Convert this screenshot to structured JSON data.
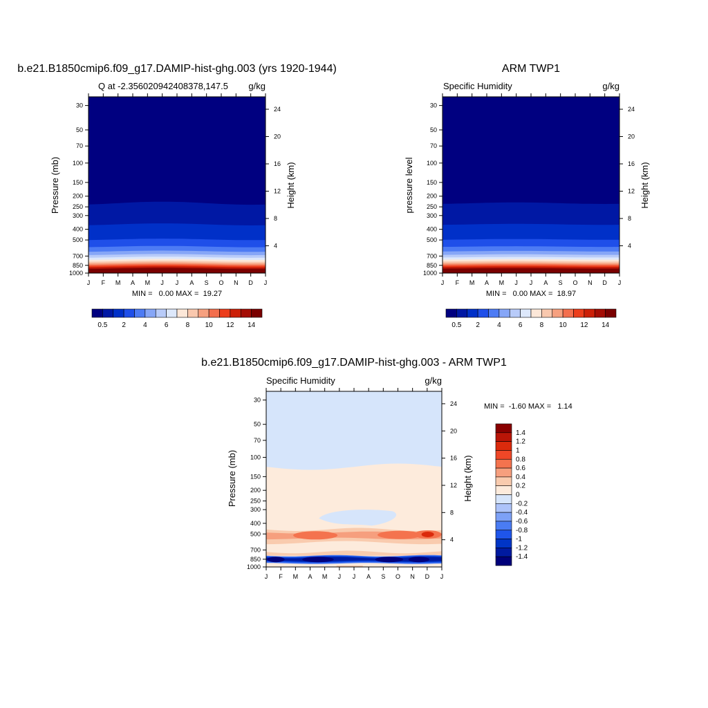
{
  "colors": {
    "blue_scale": [
      "#000080",
      "#0018A4",
      "#0030C8",
      "#1F4FE9",
      "#4D7BF4",
      "#86A6F7",
      "#B8CBF9",
      "#DDE8FB",
      "#FCE7D8",
      "#F9C8AE",
      "#F6A07F",
      "#F36F4E",
      "#EC3E1C",
      "#CC2008",
      "#A40D04",
      "#7A0000"
    ],
    "diff_scale": [
      "#00007A",
      "#001AA0",
      "#0035C6",
      "#1F55EA",
      "#4A7CF3",
      "#7DA1F6",
      "#ADC3F9",
      "#D6E5FB",
      "#FDEBDC",
      "#F9CBAE",
      "#F69F7E",
      "#F4734E",
      "#EF4727",
      "#DB2A0C",
      "#B91507",
      "#890000"
    ]
  },
  "chart_data": [
    {
      "type": "contour",
      "panel": "model",
      "title": "b.e21.B1850cmip6.f09_g17.DAMIP-hist-ghg.003 (yrs 1920-1944)",
      "left_label": "Q at -2.356020942408378,147.5",
      "right_label": "g/kg",
      "ylabel": "Pressure (mb)",
      "ylabel_right": "Height (km)",
      "x_ticks": [
        "J",
        "F",
        "M",
        "A",
        "M",
        "J",
        "J",
        "A",
        "S",
        "O",
        "N",
        "D",
        "J"
      ],
      "pressure_levels": [
        30,
        50,
        70,
        100,
        150,
        200,
        250,
        300,
        400,
        500,
        700,
        850,
        1000
      ],
      "pressure_labels": [
        "30",
        "50",
        "70",
        "100",
        "150",
        "200",
        "250",
        "300",
        "400",
        "500",
        "700",
        "850",
        "1000"
      ],
      "height_km": [
        4,
        8,
        12,
        16,
        20,
        24
      ],
      "height_labels": [
        "4",
        "8",
        "12",
        "16",
        "20",
        "24"
      ],
      "min_text": "MIN =   0.00 MAX =  19.27",
      "colorbar_levels": [
        0.5,
        1,
        2,
        3,
        4,
        5,
        6,
        7,
        8,
        9,
        10,
        11,
        12,
        13,
        14
      ],
      "colorbar_labels": [
        "0.5",
        "2",
        "4",
        "6",
        "8",
        "10",
        "12",
        "14"
      ]
    },
    {
      "type": "contour",
      "panel": "obs",
      "title": "ARM TWP1",
      "left_label": "Specific Humidity",
      "right_label": "g/kg",
      "ylabel": "pressure level",
      "ylabel_right": "Height (km)",
      "x_ticks": [
        "J",
        "F",
        "M",
        "A",
        "M",
        "J",
        "J",
        "A",
        "S",
        "O",
        "N",
        "D",
        "J"
      ],
      "pressure_levels": [
        30,
        50,
        70,
        100,
        150,
        200,
        250,
        300,
        400,
        500,
        700,
        850,
        1000
      ],
      "pressure_labels": [
        "30",
        "50",
        "70",
        "100",
        "150",
        "200",
        "250",
        "300",
        "400",
        "500",
        "700",
        "850",
        "1000"
      ],
      "height_km": [
        4,
        8,
        12,
        16,
        20,
        24
      ],
      "height_labels": [
        "4",
        "8",
        "12",
        "16",
        "20",
        "24"
      ],
      "min_text": "MIN =   0.00 MAX =  18.97",
      "colorbar_levels": [
        0.5,
        1,
        2,
        3,
        4,
        5,
        6,
        7,
        8,
        9,
        10,
        11,
        12,
        13,
        14
      ],
      "colorbar_labels": [
        "0.5",
        "2",
        "4",
        "6",
        "8",
        "10",
        "12",
        "14"
      ]
    },
    {
      "type": "contour",
      "panel": "diff",
      "title": "b.e21.B1850cmip6.f09_g17.DAMIP-hist-ghg.003 - ARM TWP1",
      "left_label": "Specific Humidity",
      "right_label": "g/kg",
      "ylabel": "Pressure (mb)",
      "ylabel_right": "Height (km)",
      "x_ticks": [
        "J",
        "F",
        "M",
        "A",
        "M",
        "J",
        "J",
        "A",
        "S",
        "O",
        "N",
        "D",
        "J"
      ],
      "pressure_levels": [
        30,
        50,
        70,
        100,
        150,
        200,
        250,
        300,
        400,
        500,
        700,
        850,
        1000
      ],
      "pressure_labels": [
        "30",
        "50",
        "70",
        "100",
        "150",
        "200",
        "250",
        "300",
        "400",
        "500",
        "700",
        "850",
        "1000"
      ],
      "height_km": [
        4,
        8,
        12,
        16,
        20,
        24
      ],
      "height_labels": [
        "4",
        "8",
        "12",
        "16",
        "20",
        "24"
      ],
      "min_text": "MIN =  -1.60 MAX =   1.14",
      "colorbar_levels": [
        -1.4,
        -1.2,
        -1,
        -0.8,
        -0.6,
        -0.4,
        -0.2,
        0,
        0.2,
        0.4,
        0.6,
        0.8,
        1,
        1.2,
        1.4
      ],
      "colorbar_labels": [
        "1.4",
        "1.2",
        "1",
        "0.8",
        "0.6",
        "0.4",
        "0.2",
        "0",
        "-0.2",
        "-0.4",
        "-0.6",
        "-0.8",
        "-1",
        "-1.2",
        "-1.4"
      ]
    }
  ]
}
